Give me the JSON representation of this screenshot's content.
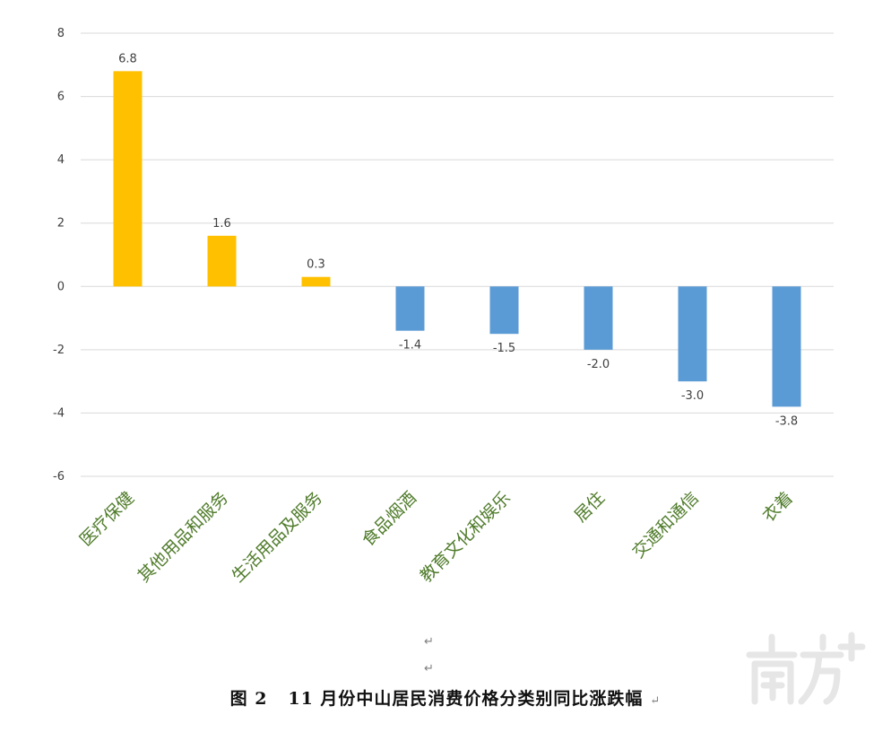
{
  "chart_data": {
    "type": "bar",
    "categories": [
      "医疗保健",
      "其他用品和服务",
      "生活用品及服务",
      "食品烟酒",
      "教育文化和娱乐",
      "居住",
      "交通和通信",
      "衣着"
    ],
    "values": [
      6.8,
      1.6,
      0.3,
      -1.4,
      -1.5,
      -2.0,
      -3.0,
      -3.8
    ],
    "value_labels": [
      "6.8",
      "1.6",
      "0.3",
      "-1.4",
      "-1.5",
      "-2.0",
      "-3.0",
      "-3.8"
    ],
    "ylim": [
      -6,
      8
    ],
    "yticks": [
      "8",
      "6",
      "4",
      "2",
      "0",
      "-2",
      "-4",
      "-6"
    ],
    "grid": true,
    "colors": {
      "positive": "#ffc000",
      "negative": "#5b9bd5",
      "grid": "#d9d9d9",
      "category_text": "#4f7b2a"
    }
  },
  "caption": "图 2   11 月份中山居民消费价格分类别同比涨跌幅",
  "paragraph_mark": "↵",
  "watermark": "南方+"
}
